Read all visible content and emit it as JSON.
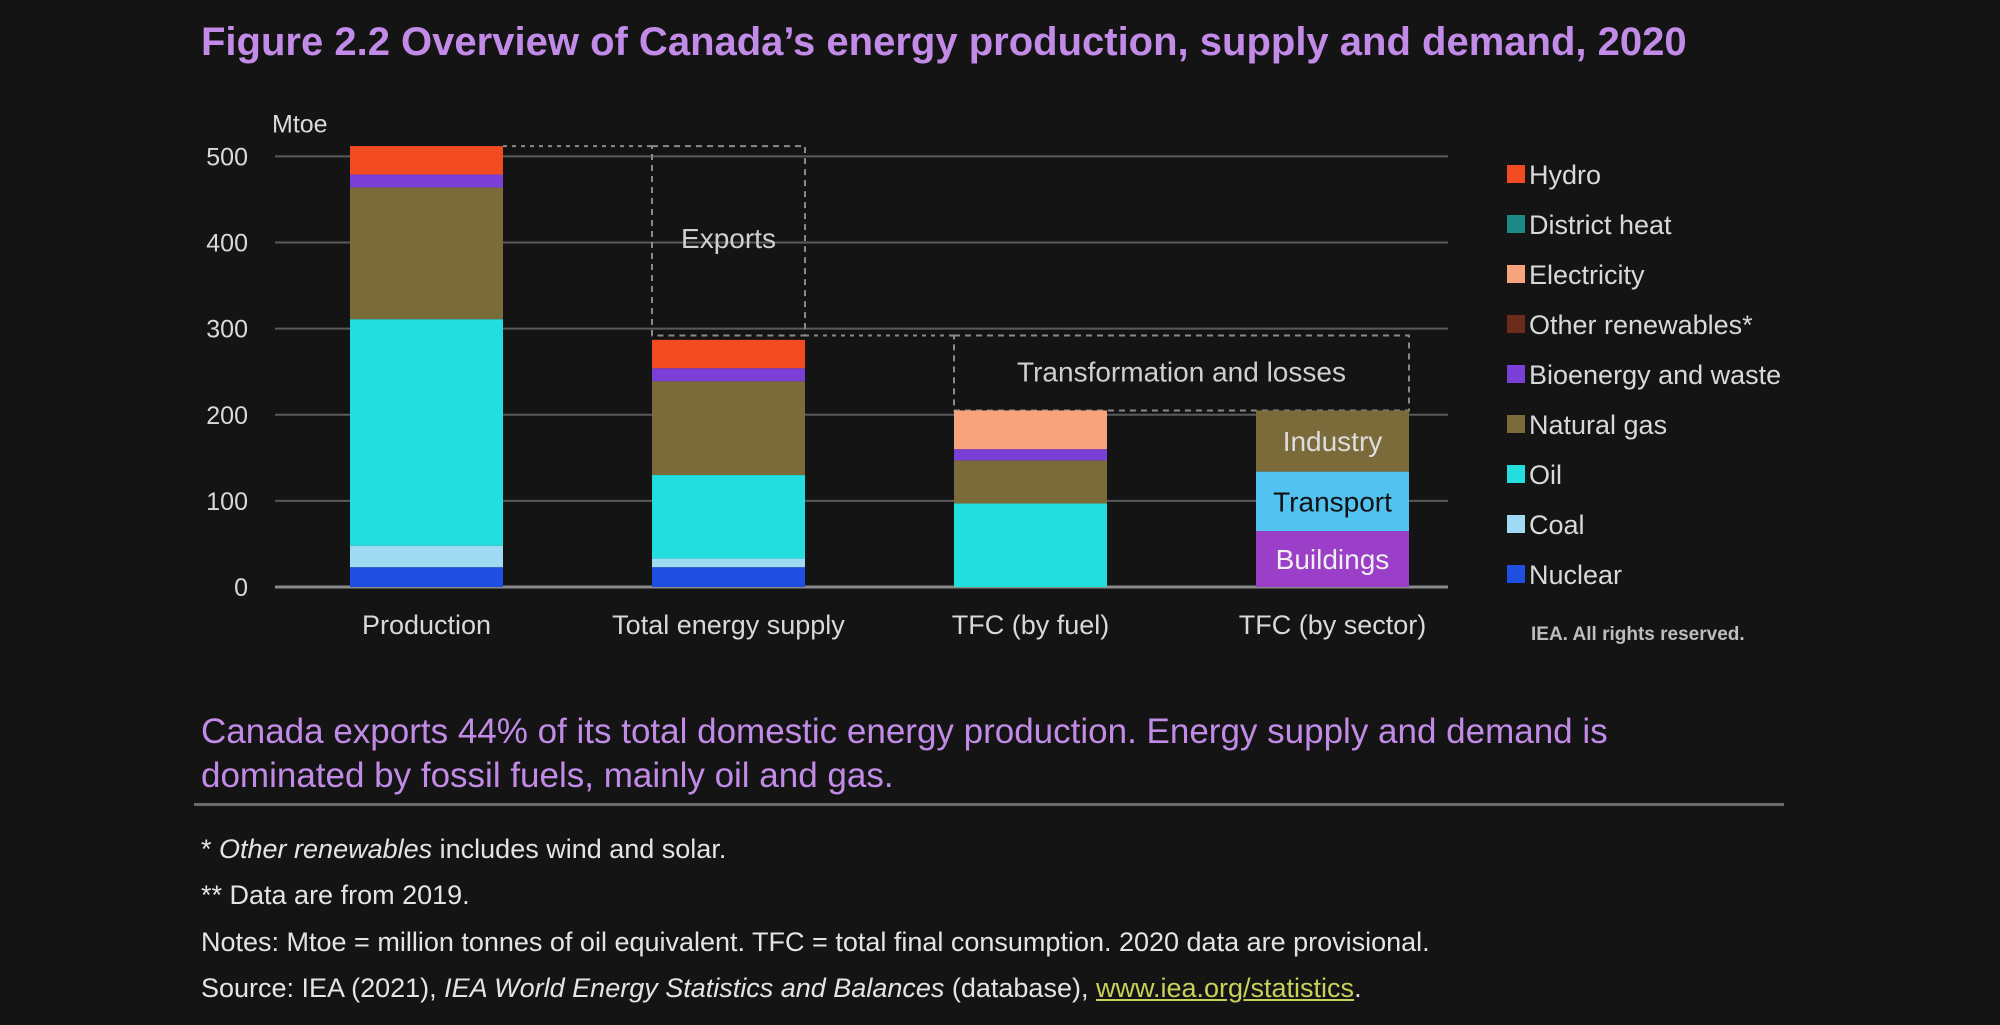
{
  "title": "Figure 2.2 Overview of Canada’s energy production, supply and demand, 2020",
  "caption": "Canada exports 44% of its total domestic energy production. Energy supply and demand is dominated by fossil fuels, mainly oil and gas.",
  "credit": "IEA. All rights reserved.",
  "notes": {
    "line1_prefix": "* ",
    "line1_italic": "Other renewables",
    "line1_rest": " includes wind and solar.",
    "line2": "** Data are from 2019.",
    "line3": "Notes: Mtoe = million tonnes of oil equivalent. TFC = total final consumption. 2020 data are provisional.",
    "line4_prefix": "Source: IEA (2021), ",
    "line4_italic": "IEA World Energy Statistics and Balances",
    "line4_mid": " (database), ",
    "line4_link": "www.iea.org/statistics",
    "line4_end": "."
  },
  "chart_data": {
    "type": "bar",
    "stacked": true,
    "ylabel": "Mtoe",
    "ylim": [
      0,
      500
    ],
    "yticks": [
      0,
      100,
      200,
      300,
      400,
      500
    ],
    "grid": true,
    "legend_position": "right",
    "categories": [
      "Production",
      "Total energy supply",
      "TFC (by fuel)",
      "TFC (by sector)"
    ],
    "series": [
      {
        "name": "Nuclear",
        "color": "#1f4fe0",
        "values": [
          23,
          23,
          0,
          0
        ]
      },
      {
        "name": "Coal",
        "color": "#9fd9f2",
        "values": [
          25,
          10,
          0,
          0
        ]
      },
      {
        "name": "Oil",
        "color": "#22dede",
        "values": [
          263,
          97,
          97,
          0
        ]
      },
      {
        "name": "Natural gas",
        "color": "#7c6b3a",
        "values": [
          153,
          109,
          50,
          0
        ]
      },
      {
        "name": "Bioenergy and waste",
        "color": "#7a3fd6",
        "values": [
          15,
          15,
          13,
          0
        ]
      },
      {
        "name": "Other renewables*",
        "color": "#6b2a1a",
        "values": [
          0,
          0,
          0,
          0
        ]
      },
      {
        "name": "Electricity",
        "color": "#f7a47c",
        "values": [
          0,
          0,
          45,
          0
        ]
      },
      {
        "name": "District heat",
        "color": "#1c8a84",
        "values": [
          0,
          0,
          0,
          0
        ]
      },
      {
        "name": "Hydro",
        "color": "#f24b22",
        "values": [
          33,
          33,
          0,
          0
        ]
      }
    ],
    "sector_bar": {
      "category": "TFC (by sector)",
      "segments": [
        {
          "name": "Buildings",
          "value": 65,
          "color": "#9b3ec8",
          "text_color": "#f0f0f0"
        },
        {
          "name": "Transport",
          "value": 69,
          "color": "#52c3f0",
          "text_color": "#111111"
        },
        {
          "name": "Industry",
          "value": 71,
          "color": "#7c6b3a",
          "text_color": "#dddddd"
        }
      ]
    },
    "annotations": [
      {
        "text": "Exports",
        "from": "Total energy supply",
        "y_bottom": 292,
        "y_top": 512
      },
      {
        "text": "Transformation and losses",
        "from": "TFC (by fuel)",
        "y_bottom": 205,
        "y_top": 292
      }
    ],
    "legend": [
      "Hydro",
      "District heat",
      "Electricity",
      "Other renewables*",
      "Bioenergy and waste",
      "Natural gas",
      "Oil",
      "Coal",
      "Nuclear"
    ]
  }
}
